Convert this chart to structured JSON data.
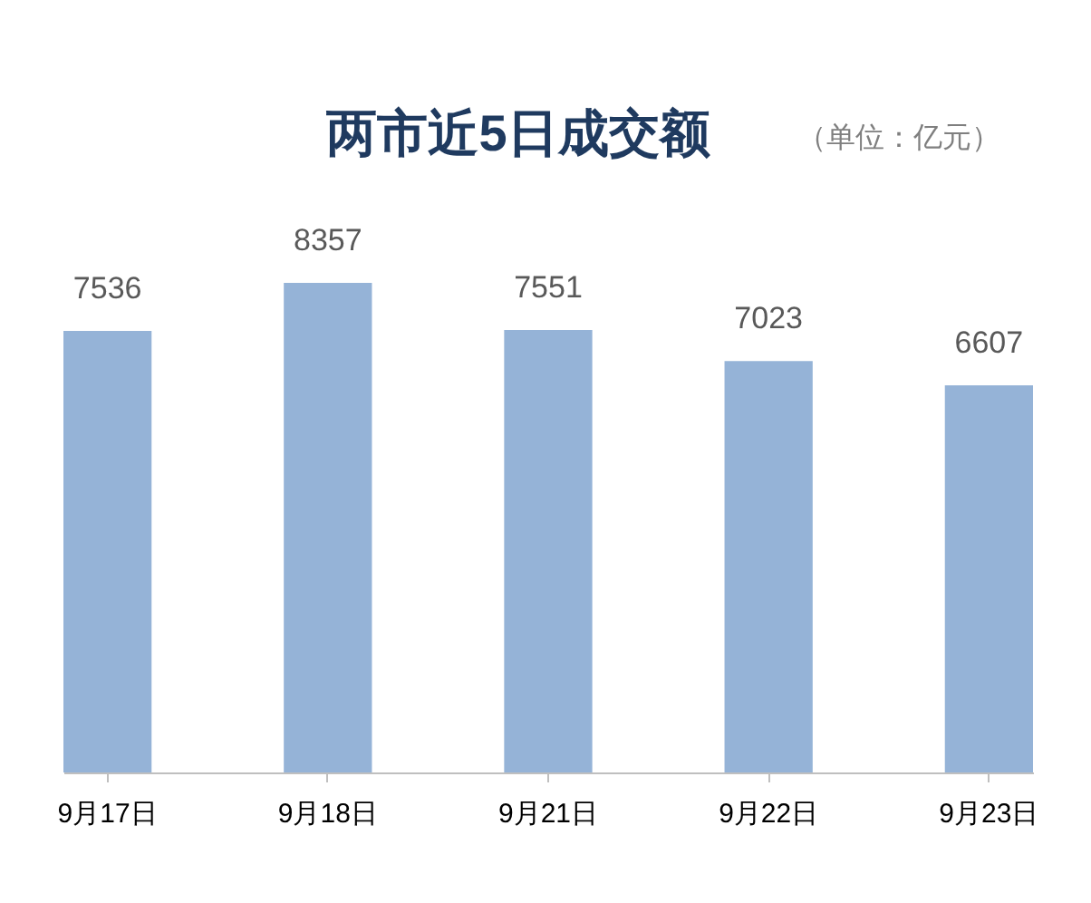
{
  "chart_data": {
    "type": "bar",
    "title": "两市近5日成交额",
    "annotations": [
      "（单位：亿元）"
    ],
    "categories": [
      "9月17日",
      "9月18日",
      "9月21日",
      "9月22日",
      "9月23日"
    ],
    "values": [
      7536,
      8357,
      7551,
      7023,
      6607
    ],
    "color": "#95b3d7",
    "data_labels": true
  }
}
